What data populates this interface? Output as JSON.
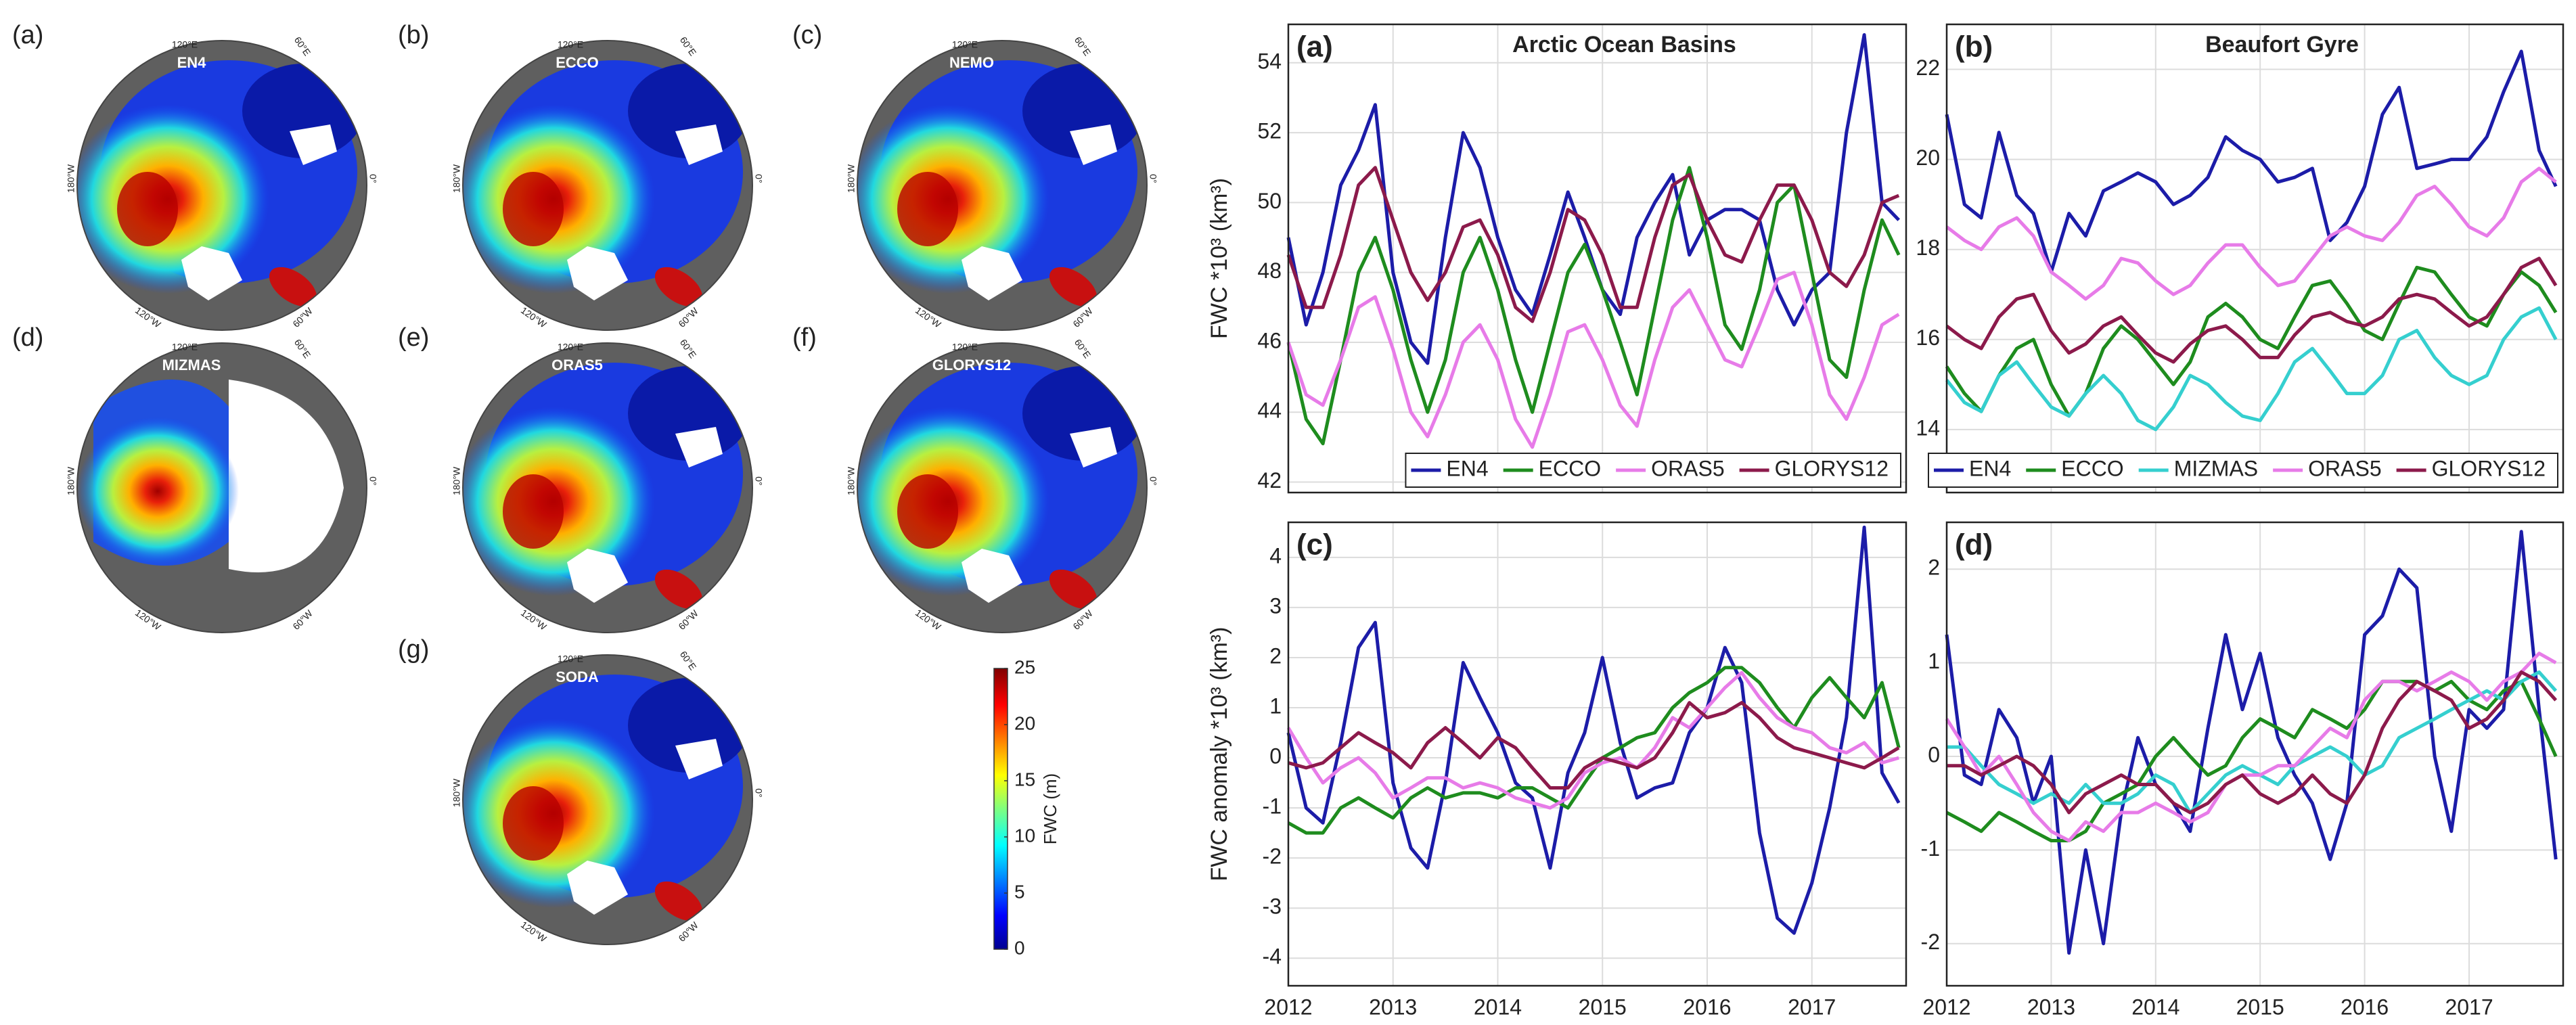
{
  "maps": {
    "panels": [
      {
        "label": "(a)",
        "name": "EN4"
      },
      {
        "label": "(b)",
        "name": "ECCO"
      },
      {
        "label": "(c)",
        "name": "NEMO"
      },
      {
        "label": "(d)",
        "name": "MIZMAS"
      },
      {
        "label": "(e)",
        "name": "ORAS5"
      },
      {
        "label": "(f)",
        "name": "GLORYS12"
      },
      {
        "label": "(g)",
        "name": "SODA"
      }
    ],
    "lon_labels": [
      "120°E",
      "60°E",
      "0°",
      "60°W",
      "120°W",
      "180°W"
    ],
    "colorbar": {
      "label": "FWC (m)",
      "lim": [
        0,
        25
      ],
      "ticks": [
        0,
        5,
        10,
        15,
        20,
        25
      ]
    }
  },
  "chart_data": [
    {
      "type": "line",
      "label": "(a)",
      "title": "Arctic Ocean Basins",
      "ylabel": "FWC *10³ (km³)",
      "x": [
        2012,
        2012.17,
        2012.33,
        2012.5,
        2012.67,
        2012.83,
        2013,
        2013.17,
        2013.33,
        2013.5,
        2013.67,
        2013.83,
        2014,
        2014.17,
        2014.33,
        2014.5,
        2014.67,
        2014.83,
        2015,
        2015.17,
        2015.33,
        2015.5,
        2015.67,
        2015.83,
        2016,
        2016.17,
        2016.33,
        2016.5,
        2016.67,
        2016.83,
        2017,
        2017.17,
        2017.33,
        2017.5,
        2017.67,
        2017.83
      ],
      "xlim": [
        2012,
        2017.9
      ],
      "xticks": [
        2012,
        2013,
        2014,
        2015,
        2016,
        2017
      ],
      "xtick_labels": false,
      "ylim": [
        41.7,
        55.1
      ],
      "yticks": [
        42,
        44,
        46,
        48,
        50,
        52,
        54
      ],
      "grid": true,
      "legend": "lower right",
      "series": [
        {
          "name": "EN4",
          "color": "#1c1ca8",
          "values": [
            49.0,
            46.5,
            48.0,
            50.5,
            51.5,
            52.8,
            48.0,
            46.0,
            45.4,
            49.0,
            52.0,
            51.0,
            49.0,
            47.5,
            46.8,
            48.5,
            50.3,
            49.0,
            47.5,
            46.8,
            49.0,
            50.0,
            50.8,
            48.5,
            49.5,
            49.8,
            49.8,
            49.5,
            47.5,
            46.5,
            47.5,
            48.0,
            52.0,
            54.8,
            50.0,
            49.5
          ]
        },
        {
          "name": "ECCO",
          "color": "#1e8c1e",
          "values": [
            46,
            43.8,
            43.1,
            45.5,
            48,
            49,
            47.5,
            45.5,
            44,
            45.5,
            48,
            49,
            47.5,
            45.5,
            44,
            46,
            48,
            48.8,
            47.5,
            46,
            44.5,
            47,
            49.5,
            51,
            49,
            46.5,
            45.8,
            47.5,
            50,
            50.5,
            48,
            45.5,
            45,
            47.5,
            49.5,
            48.5
          ]
        },
        {
          "name": "ORAS5",
          "color": "#e77be8",
          "values": [
            46,
            44.5,
            44.2,
            45.5,
            47,
            47.3,
            45.8,
            44,
            43.3,
            44.5,
            46,
            46.5,
            45.5,
            43.8,
            43,
            44.5,
            46.3,
            46.5,
            45.5,
            44.2,
            43.6,
            45.5,
            47,
            47.5,
            46.5,
            45.5,
            45.3,
            46.5,
            47.8,
            48,
            46.5,
            44.5,
            43.8,
            45,
            46.5,
            46.8
          ]
        },
        {
          "name": "GLORYS12",
          "color": "#8c1a4b",
          "values": [
            48.5,
            47,
            47,
            48.5,
            50.5,
            51,
            49.5,
            48,
            47.2,
            48,
            49.3,
            49.5,
            48.5,
            47,
            46.6,
            48,
            49.8,
            49.5,
            48.5,
            47,
            47,
            49,
            50.5,
            50.8,
            49.5,
            48.5,
            48.3,
            49.5,
            50.5,
            50.5,
            49.5,
            48,
            47.6,
            48.5,
            50,
            50.2
          ]
        }
      ]
    },
    {
      "type": "line",
      "label": "(b)",
      "title": "Beaufort Gyre",
      "x": [
        2012,
        2012.17,
        2012.33,
        2012.5,
        2012.67,
        2012.83,
        2013,
        2013.17,
        2013.33,
        2013.5,
        2013.67,
        2013.83,
        2014,
        2014.17,
        2014.33,
        2014.5,
        2014.67,
        2014.83,
        2015,
        2015.17,
        2015.33,
        2015.5,
        2015.67,
        2015.83,
        2016,
        2016.17,
        2016.33,
        2016.5,
        2016.67,
        2016.83,
        2017,
        2017.17,
        2017.33,
        2017.5,
        2017.67,
        2017.83
      ],
      "xlim": [
        2012,
        2017.9
      ],
      "xticks": [
        2012,
        2013,
        2014,
        2015,
        2016,
        2017
      ],
      "xtick_labels": false,
      "ylim": [
        12.6,
        23.0
      ],
      "yticks": [
        14,
        16,
        18,
        20,
        22
      ],
      "grid": true,
      "legend": "lower right",
      "series": [
        {
          "name": "EN4",
          "color": "#1c1ca8",
          "values": [
            21,
            19,
            18.7,
            20.6,
            19.2,
            18.8,
            17.5,
            18.8,
            18.3,
            19.3,
            19.5,
            19.7,
            19.5,
            19,
            19.2,
            19.6,
            20.5,
            20.2,
            20,
            19.5,
            19.6,
            19.8,
            18.2,
            18.6,
            19.4,
            21,
            21.6,
            19.8,
            19.9,
            20,
            20,
            20.5,
            21.5,
            22.4,
            20.2,
            19.4
          ]
        },
        {
          "name": "ECCO",
          "color": "#1e8c1e",
          "values": [
            15.4,
            14.8,
            14.4,
            15.2,
            15.8,
            16,
            15,
            14.3,
            14.8,
            15.8,
            16.3,
            16,
            15.5,
            15,
            15.5,
            16.5,
            16.8,
            16.5,
            16,
            15.8,
            16.5,
            17.2,
            17.3,
            16.8,
            16.2,
            16,
            16.8,
            17.6,
            17.5,
            17,
            16.5,
            16.3,
            17,
            17.5,
            17.2,
            16.6
          ]
        },
        {
          "name": "MIZMAS",
          "color": "#35cfcf",
          "values": [
            15.1,
            14.6,
            14.4,
            15.2,
            15.5,
            15,
            14.5,
            14.3,
            14.8,
            15.2,
            14.8,
            14.2,
            14,
            14.5,
            15.2,
            15,
            14.6,
            14.3,
            14.2,
            14.8,
            15.5,
            15.8,
            15.3,
            14.8,
            14.8,
            15.2,
            16,
            16.2,
            15.6,
            15.2,
            15,
            15.2,
            16,
            16.5,
            16.7,
            16
          ]
        },
        {
          "name": "ORAS5",
          "color": "#e77be8",
          "values": [
            18.5,
            18.2,
            18,
            18.5,
            18.7,
            18.3,
            17.5,
            17.2,
            16.9,
            17.2,
            17.8,
            17.7,
            17.3,
            17,
            17.2,
            17.7,
            18.1,
            18.1,
            17.6,
            17.2,
            17.3,
            17.8,
            18.3,
            18.5,
            18.3,
            18.2,
            18.6,
            19.2,
            19.4,
            19,
            18.5,
            18.3,
            18.7,
            19.5,
            19.8,
            19.5
          ]
        },
        {
          "name": "GLORYS12",
          "color": "#8c1a4b",
          "values": [
            16.3,
            16,
            15.8,
            16.5,
            16.9,
            17,
            16.2,
            15.7,
            15.9,
            16.3,
            16.5,
            16.1,
            15.7,
            15.5,
            15.9,
            16.2,
            16.3,
            16,
            15.6,
            15.6,
            16.1,
            16.5,
            16.6,
            16.4,
            16.3,
            16.5,
            16.9,
            17,
            16.9,
            16.6,
            16.3,
            16.5,
            17,
            17.6,
            17.8,
            17.2
          ]
        }
      ]
    },
    {
      "type": "line",
      "label": "(c)",
      "ylabel": "FWC anomaly *10³ (km³)",
      "x": [
        2012,
        2012.17,
        2012.33,
        2012.5,
        2012.67,
        2012.83,
        2013,
        2013.17,
        2013.33,
        2013.5,
        2013.67,
        2013.83,
        2014,
        2014.17,
        2014.33,
        2014.5,
        2014.67,
        2014.83,
        2015,
        2015.17,
        2015.33,
        2015.5,
        2015.67,
        2015.83,
        2016,
        2016.17,
        2016.33,
        2016.5,
        2016.67,
        2016.83,
        2017,
        2017.17,
        2017.33,
        2017.5,
        2017.67,
        2017.83
      ],
      "xlim": [
        2012,
        2017.9
      ],
      "xticks": [
        2012,
        2013,
        2014,
        2015,
        2016,
        2017
      ],
      "xtick_labels": true,
      "ylim": [
        -4.55,
        4.7
      ],
      "yticks": [
        -4,
        -3,
        -2,
        -1,
        0,
        1,
        2,
        3,
        4
      ],
      "grid": true,
      "series": [
        {
          "color": "#1c1ca8",
          "values": [
            0.5,
            -1,
            -1.3,
            0.3,
            2.2,
            2.7,
            -0.5,
            -1.8,
            -2.2,
            -0.5,
            1.9,
            1.2,
            0.5,
            -0.5,
            -0.8,
            -2.2,
            -0.3,
            0.5,
            2,
            0.3,
            -0.8,
            -0.6,
            -0.5,
            0.5,
            1,
            2.2,
            1.5,
            -1.5,
            -3.2,
            -3.5,
            -2.5,
            -1,
            0.8,
            4.6,
            -0.3,
            -0.9
          ]
        },
        {
          "color": "#1e8c1e",
          "values": [
            -1.3,
            -1.5,
            -1.5,
            -1,
            -0.8,
            -1,
            -1.2,
            -0.8,
            -0.6,
            -0.8,
            -0.7,
            -0.7,
            -0.8,
            -0.6,
            -0.6,
            -0.8,
            -1,
            -0.5,
            0,
            0.2,
            0.4,
            0.5,
            1,
            1.3,
            1.5,
            1.8,
            1.8,
            1.5,
            1,
            0.6,
            1.2,
            1.6,
            1.2,
            0.8,
            1.5,
            0.2
          ]
        },
        {
          "color": "#e77be8",
          "values": [
            0.6,
            0,
            -0.5,
            -0.2,
            0,
            -0.3,
            -0.8,
            -0.6,
            -0.4,
            -0.4,
            -0.6,
            -0.5,
            -0.6,
            -0.8,
            -0.9,
            -1,
            -0.8,
            -0.3,
            -0.1,
            0,
            -0.2,
            0.2,
            0.8,
            0.6,
            1,
            1.4,
            1.7,
            1.2,
            0.8,
            0.6,
            0.5,
            0.2,
            0.1,
            0.3,
            -0.1,
            0
          ]
        },
        {
          "color": "#8c1a4b",
          "values": [
            -0.1,
            -0.2,
            -0.1,
            0.2,
            0.5,
            0.3,
            0.1,
            -0.2,
            0.3,
            0.6,
            0.3,
            0,
            0.4,
            0.2,
            -0.2,
            -0.6,
            -0.6,
            -0.2,
            0,
            -0.1,
            -0.2,
            0,
            0.5,
            1.1,
            0.8,
            0.9,
            1.1,
            0.8,
            0.4,
            0.2,
            0.1,
            0,
            -0.1,
            -0.2,
            0,
            0.2
          ]
        }
      ]
    },
    {
      "type": "line",
      "label": "(d)",
      "x": [
        2012,
        2012.17,
        2012.33,
        2012.5,
        2012.67,
        2012.83,
        2013,
        2013.17,
        2013.33,
        2013.5,
        2013.67,
        2013.83,
        2014,
        2014.17,
        2014.33,
        2014.5,
        2014.67,
        2014.83,
        2015,
        2015.17,
        2015.33,
        2015.5,
        2015.67,
        2015.83,
        2016,
        2016.17,
        2016.33,
        2016.5,
        2016.67,
        2016.83,
        2017,
        2017.17,
        2017.33,
        2017.5,
        2017.67,
        2017.83
      ],
      "xlim": [
        2012,
        2017.9
      ],
      "xticks": [
        2012,
        2013,
        2014,
        2015,
        2016,
        2017
      ],
      "xtick_labels": true,
      "ylim": [
        -2.45,
        2.5
      ],
      "yticks": [
        -2,
        -1,
        0,
        1,
        2
      ],
      "grid": true,
      "series": [
        {
          "color": "#1c1ca8",
          "values": [
            1.3,
            -0.2,
            -0.3,
            0.5,
            0.2,
            -0.5,
            0,
            -2.1,
            -1,
            -2,
            -0.6,
            0.2,
            -0.3,
            -0.5,
            -0.8,
            0.3,
            1.3,
            0.5,
            1.1,
            0.2,
            -0.2,
            -0.5,
            -1.1,
            -0.5,
            1.3,
            1.5,
            2,
            1.8,
            0,
            -0.8,
            0.5,
            0.3,
            0.5,
            2.4,
            0.5,
            -1.1
          ]
        },
        {
          "color": "#1e8c1e",
          "values": [
            -0.6,
            -0.7,
            -0.8,
            -0.6,
            -0.7,
            -0.8,
            -0.9,
            -0.9,
            -0.8,
            -0.5,
            -0.4,
            -0.3,
            0,
            0.2,
            0,
            -0.2,
            -0.1,
            0.2,
            0.4,
            0.3,
            0.2,
            0.5,
            0.4,
            0.3,
            0.5,
            0.8,
            0.8,
            0.8,
            0.7,
            0.8,
            0.6,
            0.5,
            0.7,
            0.8,
            0.4,
            0
          ]
        },
        {
          "color": "#35cfcf",
          "values": [
            0.1,
            0.1,
            -0.1,
            -0.3,
            -0.4,
            -0.5,
            -0.4,
            -0.5,
            -0.3,
            -0.5,
            -0.5,
            -0.4,
            -0.2,
            -0.3,
            -0.6,
            -0.4,
            -0.2,
            -0.1,
            -0.2,
            -0.3,
            -0.1,
            0,
            0.1,
            0,
            -0.2,
            -0.1,
            0.2,
            0.3,
            0.4,
            0.5,
            0.6,
            0.7,
            0.6,
            0.8,
            0.9,
            0.7
          ]
        },
        {
          "color": "#e77be8",
          "values": [
            0.4,
            0.1,
            -0.2,
            0,
            -0.3,
            -0.6,
            -0.8,
            -0.9,
            -0.7,
            -0.8,
            -0.6,
            -0.6,
            -0.5,
            -0.6,
            -0.7,
            -0.6,
            -0.3,
            -0.2,
            -0.2,
            -0.1,
            -0.1,
            0.1,
            0.3,
            0.2,
            0.6,
            0.8,
            0.8,
            0.7,
            0.8,
            0.9,
            0.8,
            0.6,
            0.8,
            0.9,
            1.1,
            1
          ]
        },
        {
          "color": "#8c1a4b",
          "values": [
            -0.1,
            -0.1,
            -0.2,
            -0.1,
            0,
            -0.1,
            -0.3,
            -0.6,
            -0.4,
            -0.3,
            -0.2,
            -0.3,
            -0.3,
            -0.5,
            -0.6,
            -0.5,
            -0.3,
            -0.2,
            -0.4,
            -0.5,
            -0.4,
            -0.2,
            -0.4,
            -0.5,
            -0.2,
            0.3,
            0.6,
            0.8,
            0.7,
            0.6,
            0.3,
            0.4,
            0.6,
            0.9,
            0.8,
            0.6
          ]
        }
      ]
    }
  ]
}
